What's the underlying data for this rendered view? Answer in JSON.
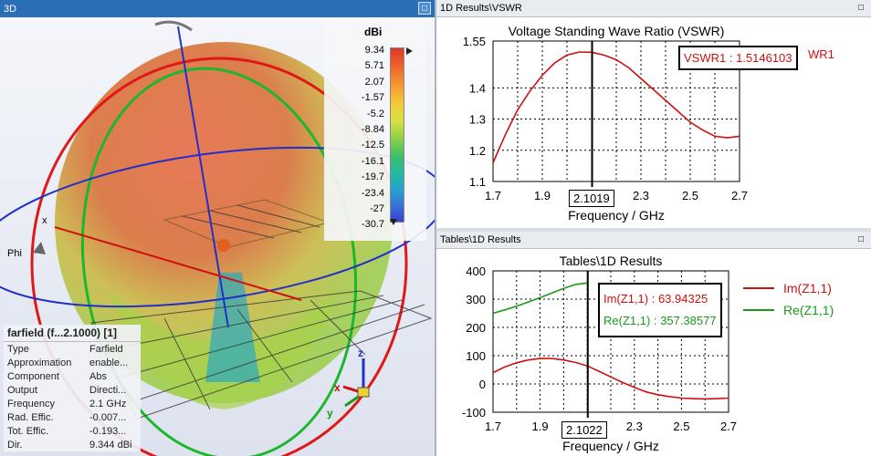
{
  "view3d": {
    "title": "3D",
    "colorbar": {
      "title": "dBi",
      "labels": [
        "9.34",
        "5.71",
        "2.07",
        "-1.57",
        "-5.2",
        "-8.84",
        "-12.5",
        "-16.1",
        "-19.7",
        "-23.4",
        "-27",
        "-30.7"
      ]
    },
    "axis_phi": "Phi",
    "axis_x": "x",
    "triad": {
      "z": "z",
      "x": "x",
      "y": "y"
    },
    "info": {
      "title": "farfield (f...2.1000) [1]",
      "rows": [
        {
          "key": "Type",
          "value": "Farfield"
        },
        {
          "key": "Approximation",
          "value": "enable..."
        },
        {
          "key": "Component",
          "value": "Abs"
        },
        {
          "key": "Output",
          "value": "Directi..."
        },
        {
          "key": "Frequency",
          "value": "2.1 GHz"
        },
        {
          "key": "Rad. Effic.",
          "value": "-0.007..."
        },
        {
          "key": "Tot. Effic.",
          "value": "-0.193..."
        },
        {
          "key": "Dir.",
          "value": "9.344 dBi"
        }
      ]
    }
  },
  "vswr_panel": {
    "title": "1D Results\\VSWR",
    "readout": "VSWR1 : 1.5146103",
    "legend_fragment": "WR1",
    "marker": "2.1019"
  },
  "z_panel": {
    "title": "Tables\\1D Results",
    "readout_im": "Im(Z1,1) : 63.94325",
    "readout_re": "Re(Z1,1) : 357.38577",
    "marker": "2.1022",
    "legend": [
      "Im(Z1,1)",
      "Re(Z1,1)"
    ]
  },
  "colors": {
    "red": "#d01010",
    "green": "#1a9a1a",
    "titlebar_blue": "#2a6fb6"
  },
  "chart_data": [
    {
      "type": "line",
      "title": "Voltage Standing Wave Ratio (VSWR)",
      "xlabel": "Frequency / GHz",
      "ylabel": "",
      "xlim": [
        1.7,
        2.7
      ],
      "ylim": [
        1.1,
        1.55
      ],
      "xticks": [
        "1.7",
        "1.9",
        "2.1",
        "2.3",
        "2.5",
        "2.7"
      ],
      "yticks": [
        "1.1",
        "1.2",
        "1.3",
        "1.4",
        "1.55"
      ],
      "yticks_val": [
        1.1,
        1.2,
        1.3,
        1.4,
        1.55
      ],
      "marker_x": 2.1019,
      "series": [
        {
          "name": "VSWR1",
          "color": "#d01010",
          "x": [
            1.7,
            1.75,
            1.8,
            1.85,
            1.9,
            1.95,
            2.0,
            2.05,
            2.1,
            2.15,
            2.2,
            2.25,
            2.3,
            2.35,
            2.4,
            2.45,
            2.5,
            2.55,
            2.6,
            2.65,
            2.7
          ],
          "y": [
            1.16,
            1.25,
            1.33,
            1.39,
            1.44,
            1.48,
            1.505,
            1.515,
            1.514,
            1.505,
            1.49,
            1.465,
            1.43,
            1.395,
            1.36,
            1.325,
            1.29,
            1.265,
            1.245,
            1.24,
            1.245
          ]
        }
      ]
    },
    {
      "type": "line",
      "title": "Tables\\1D Results",
      "xlabel": "Frequency / GHz",
      "ylabel": "",
      "xlim": [
        1.7,
        2.7
      ],
      "ylim": [
        -100,
        400
      ],
      "xticks": [
        "1.7",
        "1.9",
        "2.1",
        "2.3",
        "2.5",
        "2.7"
      ],
      "yticks": [
        "-100",
        "0",
        "100",
        "200",
        "300",
        "400"
      ],
      "yticks_val": [
        -100,
        0,
        100,
        200,
        300,
        400
      ],
      "marker_x": 2.1022,
      "series": [
        {
          "name": "Im(Z1,1)",
          "color": "#d01010",
          "x": [
            1.7,
            1.75,
            1.8,
            1.85,
            1.9,
            1.95,
            2.0,
            2.05,
            2.1,
            2.15,
            2.2,
            2.25,
            2.3,
            2.35,
            2.4,
            2.45,
            2.5,
            2.55,
            2.6,
            2.65,
            2.7
          ],
          "y": [
            40,
            60,
            75,
            85,
            90,
            90,
            85,
            76,
            64,
            45,
            25,
            5,
            -12,
            -28,
            -38,
            -45,
            -50,
            -52,
            -53,
            -52,
            -50
          ]
        },
        {
          "name": "Re(Z1,1)",
          "color": "#1a9a1a",
          "x": [
            1.7,
            1.75,
            1.8,
            1.85,
            1.9,
            1.95,
            2.0,
            2.05,
            2.1
          ],
          "y": [
            250,
            262,
            275,
            290,
            305,
            322,
            338,
            352,
            357
          ]
        }
      ]
    }
  ]
}
